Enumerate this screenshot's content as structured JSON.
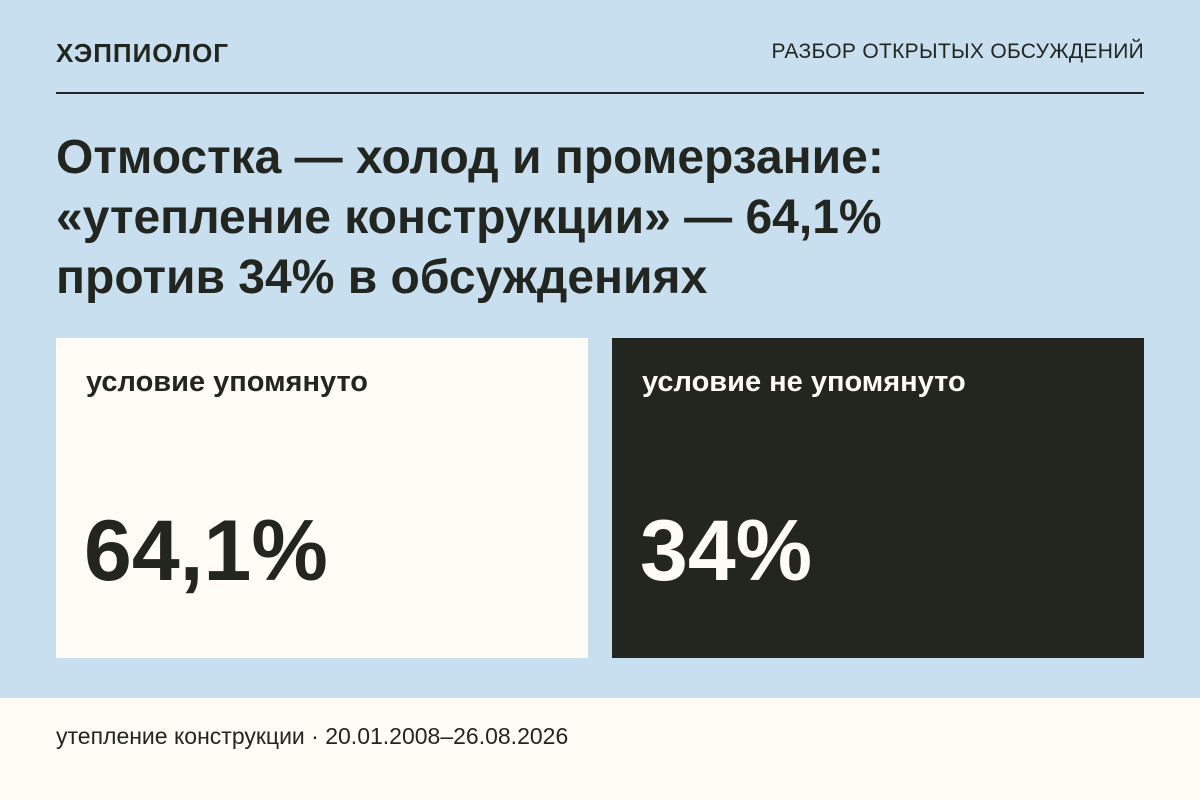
{
  "header": {
    "brand": "ХЭППИОЛОГ",
    "section": "РАЗБОР ОТКРЫТЫХ ОБСУЖДЕНИЙ"
  },
  "headline": {
    "lines": [
      "Отмостка — холод и промерзание:",
      "«утепление конструкции» — 64,1%",
      "против 34% в обсуждениях"
    ]
  },
  "cards": [
    {
      "label": "условие упомянуто",
      "value": "64,1%",
      "style": "light"
    },
    {
      "label": "условие не упомянуто",
      "value": "34%",
      "style": "dark"
    }
  ],
  "footer": {
    "text": "утепление конструкции · 20.01.2008–26.08.2026"
  },
  "colors": {
    "background": "#c7dfee",
    "light_card": "#fefcf5",
    "dark_card": "#23251f",
    "text": "#23251f"
  }
}
